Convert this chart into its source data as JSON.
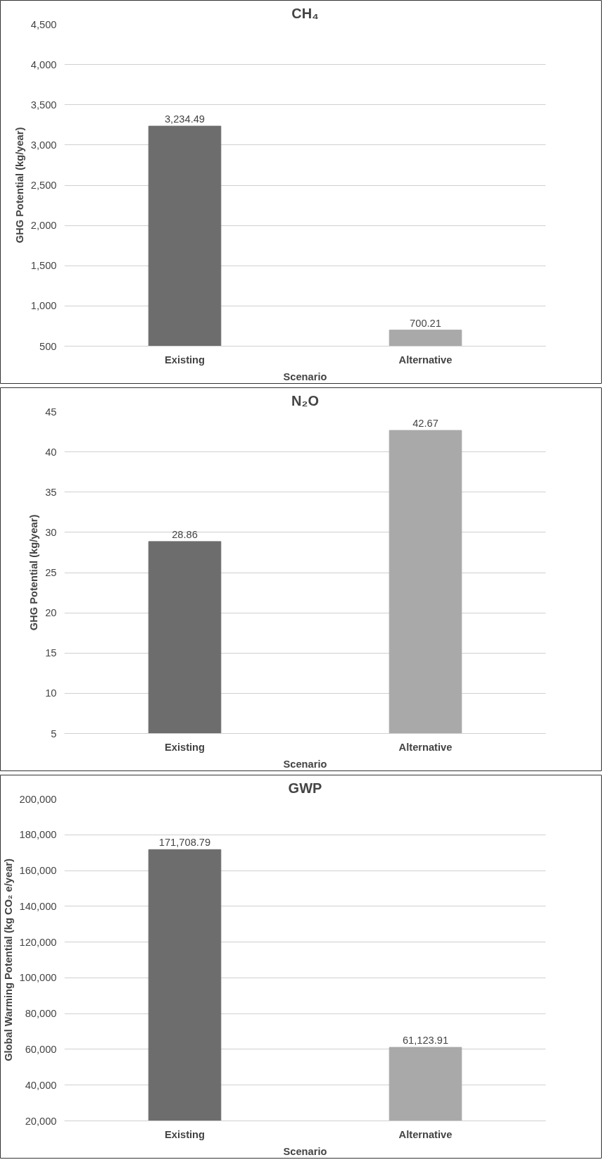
{
  "chart_data": [
    {
      "type": "bar",
      "title": "CH₄",
      "xlabel": "Scenario",
      "ylabel": "GHG Potential (kg/year)",
      "categories": [
        "Existing",
        "Alternative"
      ],
      "values": [
        3234.49,
        700.21
      ],
      "colors": [
        "#6d6d6d",
        "#a9a9a9"
      ],
      "value_labels": [
        "3,234.49",
        "700.21"
      ],
      "ylim": [
        500,
        4500
      ],
      "yticks": [
        {
          "value": 500,
          "label": "500"
        },
        {
          "value": 1000,
          "label": "1,000"
        },
        {
          "value": 1500,
          "label": "1,500"
        },
        {
          "value": 2000,
          "label": "2,000"
        },
        {
          "value": 2500,
          "label": "2,500"
        },
        {
          "value": 3000,
          "label": "3,000"
        },
        {
          "value": 3500,
          "label": "3,500"
        },
        {
          "value": 4000,
          "label": "4,000"
        },
        {
          "value": 4500,
          "label": "4,500"
        }
      ],
      "grid": "y"
    },
    {
      "type": "bar",
      "title": "N₂O",
      "xlabel": "Scenario",
      "ylabel": "GHG Potential (kg/year)",
      "categories": [
        "Existing",
        "Alternative"
      ],
      "values": [
        28.86,
        42.67
      ],
      "colors": [
        "#6d6d6d",
        "#a9a9a9"
      ],
      "data_labels": true,
      "ylim": [
        5,
        45
      ],
      "yticks": [
        5,
        10,
        15,
        20,
        25,
        30,
        35,
        40,
        45
      ],
      "grid": "y"
    },
    {
      "type": "bar",
      "title": "GWP",
      "xlabel": "Scenario",
      "ylabel": "Global Warming Potential (kg CO₂ e/year)",
      "categories": [
        "Existing",
        "Alternative"
      ],
      "values": [
        171708.79,
        61123.91
      ],
      "colors": [
        "#6d6d6d",
        "#a9a9a9"
      ],
      "value_labels": [
        "171,708.79",
        "61,123.91"
      ],
      "ylim": [
        20000,
        200000
      ],
      "yticks": [
        {
          "value": 20000,
          "label": "20,000"
        },
        {
          "value": 40000,
          "label": "40,000"
        },
        {
          "value": 60000,
          "label": "60,000"
        },
        {
          "value": 80000,
          "label": "80,000"
        },
        {
          "value": 100000,
          "label": "100,000"
        },
        {
          "value": 120000,
          "label": "120,000"
        },
        {
          "value": 140000,
          "label": "140,000"
        },
        {
          "value": 160000,
          "label": "160,000"
        },
        {
          "value": 180000,
          "label": "180,000"
        },
        {
          "value": 200000,
          "label": "200,000"
        }
      ],
      "grid": "y"
    }
  ]
}
